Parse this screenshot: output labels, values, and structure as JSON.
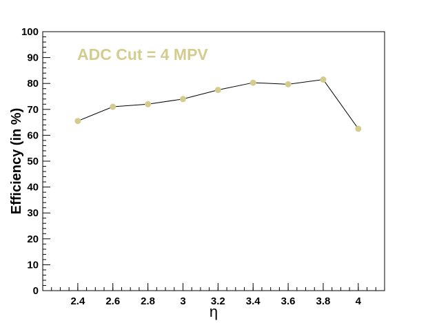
{
  "chart_data": {
    "type": "scatter",
    "annotation": "ADC Cut = 4 MPV",
    "xlabel": "η",
    "ylabel": "Efficiency (in %)",
    "xlim": [
      2.2,
      4.15
    ],
    "ylim": [
      0,
      100
    ],
    "x_ticks": [
      "2.4",
      "2.6",
      "2.8",
      "3",
      "3.2",
      "3.4",
      "3.6",
      "3.8",
      "4"
    ],
    "y_ticks": [
      "0",
      "10",
      "20",
      "30",
      "40",
      "50",
      "60",
      "70",
      "80",
      "90",
      "100"
    ],
    "grid": false,
    "line_color": "#000000",
    "marker_color": "#d4cc8e",
    "annotation_color": "#d4cc8e",
    "points": [
      {
        "x": 2.4,
        "y": 65.5
      },
      {
        "x": 2.6,
        "y": 71.0
      },
      {
        "x": 2.8,
        "y": 72.0
      },
      {
        "x": 3.0,
        "y": 74.0
      },
      {
        "x": 3.2,
        "y": 77.5
      },
      {
        "x": 3.4,
        "y": 80.3
      },
      {
        "x": 3.6,
        "y": 79.7
      },
      {
        "x": 3.8,
        "y": 81.5
      },
      {
        "x": 4.0,
        "y": 62.5
      }
    ]
  }
}
